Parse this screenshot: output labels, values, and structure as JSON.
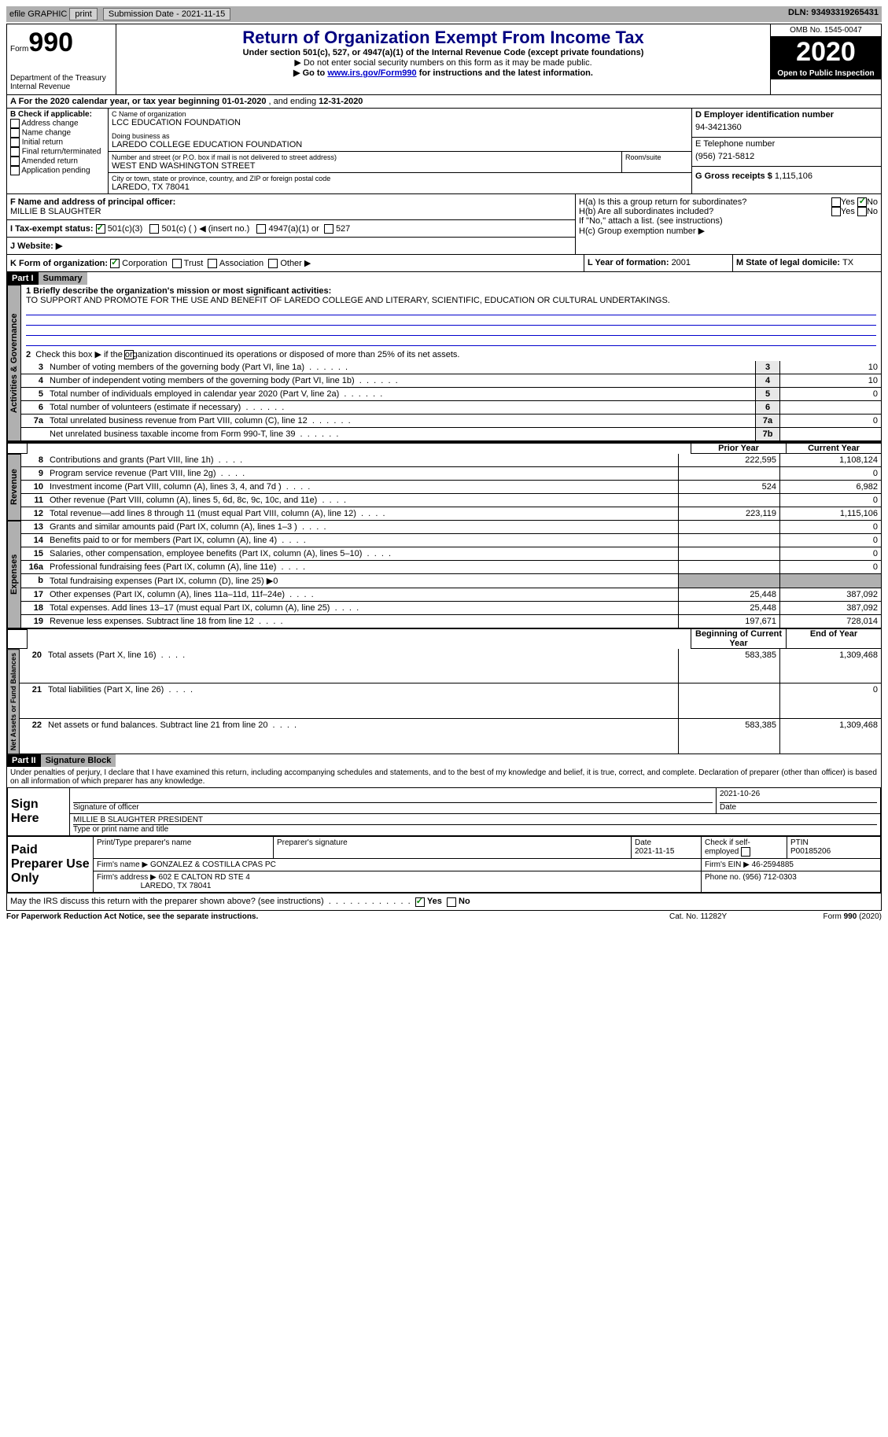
{
  "top_bar": {
    "efile": "efile GRAPHIC",
    "print": "print",
    "sub_date_label": "Submission Date - ",
    "sub_date": "2021-11-15",
    "dln_label": "DLN: ",
    "dln": "93493319265431"
  },
  "header": {
    "form_word": "Form",
    "form_num": "990",
    "dept1": "Department of the Treasury",
    "dept2": "Internal Revenue",
    "title": "Return of Organization Exempt From Income Tax",
    "subtitle": "Under section 501(c), 527, or 4947(a)(1) of the Internal Revenue Code (except private foundations)",
    "note1": "▶ Do not enter social security numbers on this form as it may be made public.",
    "note2_pre": "▶ Go to ",
    "note2_link": "www.irs.gov/Form990",
    "note2_post": " for instructions and the latest information.",
    "omb": "OMB No. 1545-0047",
    "year": "2020",
    "otp": "Open to Public Inspection"
  },
  "period": {
    "text_pre": "A For the 2020 calendar year, or tax year beginning ",
    "begin": "01-01-2020",
    "mid": " , and ending ",
    "end": "12-31-2020"
  },
  "boxB": {
    "label": "B Check if applicable:",
    "items": [
      "Address change",
      "Name change",
      "Initial return",
      "Final return/terminated",
      "Amended return",
      "Application pending"
    ]
  },
  "boxC": {
    "name_label": "C Name of organization",
    "name": "LCC EDUCATION FOUNDATION",
    "dba_label": "Doing business as",
    "dba": "LAREDO COLLEGE EDUCATION FOUNDATION",
    "street_label": "Number and street (or P.O. box if mail is not delivered to street address)",
    "street": "WEST END WASHINGTON STREET",
    "room_label": "Room/suite",
    "city_label": "City or town, state or province, country, and ZIP or foreign postal code",
    "city": "LAREDO, TX  78041"
  },
  "boxD": {
    "label": "D Employer identification number",
    "value": "94-3421360"
  },
  "boxE": {
    "label": "E Telephone number",
    "value": "(956) 721-5812"
  },
  "boxG": {
    "label": "G Gross receipts $ ",
    "value": "1,115,106"
  },
  "boxF": {
    "label": "F  Name and address of principal officer:",
    "value": "MILLIE B SLAUGHTER"
  },
  "boxH": {
    "a": "H(a)  Is this a group return for subordinates?",
    "b": "H(b)  Are all subordinates included?",
    "b_note": "If \"No,\" attach a list. (see instructions)",
    "c": "H(c)  Group exemption number ▶",
    "yes": "Yes",
    "no": "No"
  },
  "boxI": {
    "label": "I     Tax-exempt status:",
    "opts": [
      "501(c)(3)",
      "501(c) (  ) ◀ (insert no.)",
      "4947(a)(1) or",
      "527"
    ]
  },
  "boxJ": {
    "label": "J     Website: ▶"
  },
  "boxK": {
    "label": "K Form of organization:",
    "opts": [
      "Corporation",
      "Trust",
      "Association",
      "Other ▶"
    ]
  },
  "boxL": {
    "label": "L Year of formation: ",
    "value": "2001"
  },
  "boxM": {
    "label": "M State of legal domicile: ",
    "value": "TX"
  },
  "part1": {
    "label": "Part I",
    "title": "Summary",
    "q1": "1  Briefly describe the organization's mission or most significant activities:",
    "mission": "TO SUPPORT AND PROMOTE FOR THE USE AND BENEFIT OF LAREDO COLLEGE AND LITERARY, SCIENTIFIC, EDUCATION OR CULTURAL UNDERTAKINGS.",
    "q2": "Check this box ▶       if the organization discontinued its operations or disposed of more than 25% of its net assets.",
    "side_ag": "Activities & Governance",
    "side_rev": "Revenue",
    "side_exp": "Expenses",
    "side_na": "Net Assets or Fund Balances",
    "col_prior": "Prior Year",
    "col_curr": "Current Year",
    "col_beg": "Beginning of Current Year",
    "col_end": "End of Year",
    "lines_ag": [
      {
        "n": "3",
        "t": "Number of voting members of the governing body (Part VI, line 1a)",
        "id": "3",
        "v": "10"
      },
      {
        "n": "4",
        "t": "Number of independent voting members of the governing body (Part VI, line 1b)",
        "id": "4",
        "v": "10"
      },
      {
        "n": "5",
        "t": "Total number of individuals employed in calendar year 2020 (Part V, line 2a)",
        "id": "5",
        "v": "0"
      },
      {
        "n": "6",
        "t": "Total number of volunteers (estimate if necessary)",
        "id": "6",
        "v": ""
      },
      {
        "n": "7a",
        "t": "Total unrelated business revenue from Part VIII, column (C), line 12",
        "id": "7a",
        "v": "0"
      },
      {
        "n": "",
        "t": "Net unrelated business taxable income from Form 990-T, line 39",
        "id": "7b",
        "v": ""
      }
    ],
    "lines_rev": [
      {
        "n": "8",
        "t": "Contributions and grants (Part VIII, line 1h)",
        "p": "222,595",
        "c": "1,108,124"
      },
      {
        "n": "9",
        "t": "Program service revenue (Part VIII, line 2g)",
        "p": "",
        "c": "0"
      },
      {
        "n": "10",
        "t": "Investment income (Part VIII, column (A), lines 3, 4, and 7d )",
        "p": "524",
        "c": "6,982"
      },
      {
        "n": "11",
        "t": "Other revenue (Part VIII, column (A), lines 5, 6d, 8c, 9c, 10c, and 11e)",
        "p": "",
        "c": "0"
      },
      {
        "n": "12",
        "t": "Total revenue—add lines 8 through 11 (must equal Part VIII, column (A), line 12)",
        "p": "223,119",
        "c": "1,115,106"
      }
    ],
    "lines_exp": [
      {
        "n": "13",
        "t": "Grants and similar amounts paid (Part IX, column (A), lines 1–3 )",
        "p": "",
        "c": "0"
      },
      {
        "n": "14",
        "t": "Benefits paid to or for members (Part IX, column (A), line 4)",
        "p": "",
        "c": "0"
      },
      {
        "n": "15",
        "t": "Salaries, other compensation, employee benefits (Part IX, column (A), lines 5–10)",
        "p": "",
        "c": "0"
      },
      {
        "n": "16a",
        "t": "Professional fundraising fees (Part IX, column (A), line 11e)",
        "p": "",
        "c": "0"
      },
      {
        "n": "b",
        "t": "Total fundraising expenses (Part IX, column (D), line 25) ▶0",
        "p": "gray",
        "c": "gray"
      },
      {
        "n": "17",
        "t": "Other expenses (Part IX, column (A), lines 11a–11d, 11f–24e)",
        "p": "25,448",
        "c": "387,092"
      },
      {
        "n": "18",
        "t": "Total expenses. Add lines 13–17 (must equal Part IX, column (A), line 25)",
        "p": "25,448",
        "c": "387,092"
      },
      {
        "n": "19",
        "t": "Revenue less expenses. Subtract line 18 from line 12",
        "p": "197,671",
        "c": "728,014"
      }
    ],
    "lines_na": [
      {
        "n": "20",
        "t": "Total assets (Part X, line 16)",
        "p": "583,385",
        "c": "1,309,468"
      },
      {
        "n": "21",
        "t": "Total liabilities (Part X, line 26)",
        "p": "",
        "c": "0"
      },
      {
        "n": "22",
        "t": "Net assets or fund balances. Subtract line 21 from line 20",
        "p": "583,385",
        "c": "1,309,468"
      }
    ]
  },
  "part2": {
    "label": "Part II",
    "title": "Signature Block",
    "decl": "Under penalties of perjury, I declare that I have examined this return, including accompanying schedules and statements, and to the best of my knowledge and belief, it is true, correct, and complete. Declaration of preparer (other than officer) is based on all information of which preparer has any knowledge.",
    "sign_here": "Sign Here",
    "sig_officer": "Signature of officer",
    "sig_date": "2021-10-26",
    "date_label": "Date",
    "officer_name": "MILLIE B SLAUGHTER  PRESIDENT",
    "type_label": "Type or print name and title",
    "paid": "Paid Preparer Use Only",
    "prep_name_label": "Print/Type preparer's name",
    "prep_sig_label": "Preparer's signature",
    "prep_date_label": "Date",
    "prep_date": "2021-11-15",
    "check_se": "Check        if self-employed",
    "ptin_label": "PTIN",
    "ptin": "P00185206",
    "firm_name_label": "Firm's name      ▶ ",
    "firm_name": "GONZALEZ & COSTILLA CPAS PC",
    "firm_ein_label": "Firm's EIN ▶ ",
    "firm_ein": "46-2594885",
    "firm_addr_label": "Firm's address ▶ ",
    "firm_addr1": "602 E CALTON RD STE 4",
    "firm_addr2": "LAREDO, TX  78041",
    "phone_label": "Phone no. ",
    "phone": "(956) 712-0303",
    "discuss": "May the IRS discuss this return with the preparer shown above? (see instructions)",
    "yes": "Yes",
    "no": "No"
  },
  "footer": {
    "pra": "For Paperwork Reduction Act Notice, see the separate instructions.",
    "cat": "Cat. No. 11282Y",
    "form": "Form 990 (2020)"
  }
}
